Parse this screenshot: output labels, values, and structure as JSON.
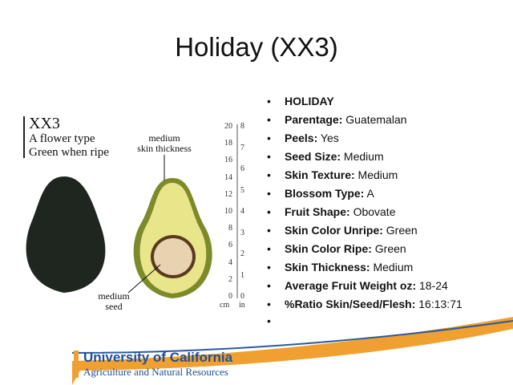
{
  "title": "Holiday (XX3)",
  "figure": {
    "variety": "XX3",
    "notes": [
      "A flower type",
      "Green when ripe"
    ],
    "skin_label": [
      "medium",
      "skin thickness"
    ],
    "seed_label": [
      "medium",
      "seed"
    ],
    "ruler": {
      "cm": [
        0,
        2,
        4,
        6,
        8,
        10,
        12,
        14,
        16,
        18,
        20
      ],
      "in": [
        0,
        1,
        2,
        3,
        4,
        5,
        6,
        7,
        8
      ],
      "cm_unit": "cm",
      "in_unit": "in"
    }
  },
  "bullets": [
    {
      "label": "HOLIDAY"
    },
    {
      "label": "Parentage:",
      "value": "Guatemalan"
    },
    {
      "label": "Peels:",
      "value": "Yes"
    },
    {
      "label": "Seed Size:",
      "value": "Medium"
    },
    {
      "label": "Skin Texture:",
      "value": "Medium"
    },
    {
      "label": "Blossom Type:",
      "value": "A"
    },
    {
      "label": "Fruit Shape:",
      "value": "Obovate"
    },
    {
      "label": "Skin Color Unripe:",
      "value": "Green"
    },
    {
      "label": "Skin Color Ripe:",
      "value": "Green"
    },
    {
      "label": "Skin Thickness:",
      "value": "Medium"
    },
    {
      "label": "Average Fruit Weight oz:",
      "value": "18-24"
    },
    {
      "label": "%Ratio Skin/Seed/Flesh:",
      "value": "16:13:71"
    }
  ],
  "footer": {
    "org": "University of California",
    "division": "Agriculture and Natural Resources"
  }
}
